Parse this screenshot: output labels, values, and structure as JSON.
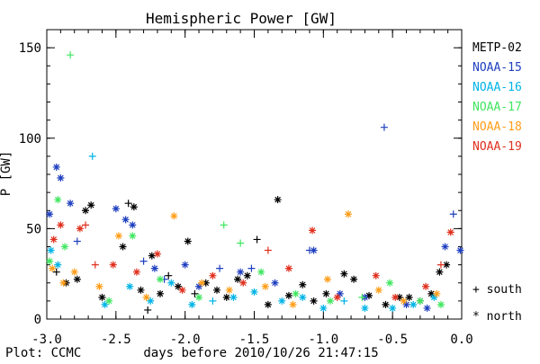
{
  "chart_data": {
    "type": "scatter",
    "title": "Hemispheric Power [GW]",
    "ylabel": "P [GW]",
    "xlabel": "days before 2010/10/26 21:47:15",
    "footer": "Plot: CCMC",
    "xlim": [
      -3.0,
      0.0
    ],
    "ylim": [
      0,
      160
    ],
    "x_ticks": [
      "-3.0",
      "-2.5",
      "-2.0",
      "-1.5",
      "-1.0",
      "-0.5",
      "0.0"
    ],
    "x_tick_values": [
      -3.0,
      -2.5,
      -2.0,
      -1.5,
      -1.0,
      -0.5,
      0.0
    ],
    "y_ticks": [
      "0",
      "50",
      "100",
      "150"
    ],
    "y_tick_values": [
      0,
      50,
      100,
      150
    ],
    "grid": false,
    "legend_placement": "right",
    "marker_legend": [
      {
        "symbol": "+",
        "label": "south"
      },
      {
        "symbol": "*",
        "label": "north"
      }
    ],
    "series": [
      {
        "name": "METP-02",
        "color": "#000000",
        "points": [
          {
            "x": -2.93,
            "y": 26,
            "h": "south"
          },
          {
            "x": -2.86,
            "y": 20,
            "h": "north"
          },
          {
            "x": -2.78,
            "y": 22,
            "h": "north"
          },
          {
            "x": -2.72,
            "y": 60,
            "h": "north"
          },
          {
            "x": -2.68,
            "y": 63,
            "h": "north"
          },
          {
            "x": -2.6,
            "y": 12,
            "h": "north"
          },
          {
            "x": -2.45,
            "y": 40,
            "h": "north"
          },
          {
            "x": -2.41,
            "y": 64,
            "h": "south"
          },
          {
            "x": -2.37,
            "y": 62,
            "h": "north"
          },
          {
            "x": -2.32,
            "y": 16,
            "h": "north"
          },
          {
            "x": -2.27,
            "y": 5,
            "h": "south"
          },
          {
            "x": -2.24,
            "y": 35,
            "h": "north"
          },
          {
            "x": -2.18,
            "y": 14,
            "h": "north"
          },
          {
            "x": -2.12,
            "y": 24,
            "h": "south"
          },
          {
            "x": -2.05,
            "y": 18,
            "h": "north"
          },
          {
            "x": -1.98,
            "y": 43,
            "h": "north"
          },
          {
            "x": -1.93,
            "y": 14,
            "h": "south"
          },
          {
            "x": -1.85,
            "y": 20,
            "h": "north"
          },
          {
            "x": -1.77,
            "y": 16,
            "h": "north"
          },
          {
            "x": -1.7,
            "y": 12,
            "h": "north"
          },
          {
            "x": -1.62,
            "y": 22,
            "h": "north"
          },
          {
            "x": -1.55,
            "y": 24,
            "h": "north"
          },
          {
            "x": -1.48,
            "y": 44,
            "h": "south"
          },
          {
            "x": -1.4,
            "y": 8,
            "h": "north"
          },
          {
            "x": -1.33,
            "y": 66,
            "h": "north"
          },
          {
            "x": -1.25,
            "y": 13,
            "h": "north"
          },
          {
            "x": -1.15,
            "y": 19,
            "h": "north"
          },
          {
            "x": -1.07,
            "y": 10,
            "h": "north"
          },
          {
            "x": -0.98,
            "y": 14,
            "h": "north"
          },
          {
            "x": -0.85,
            "y": 25,
            "h": "north"
          },
          {
            "x": -0.78,
            "y": 22,
            "h": "north"
          },
          {
            "x": -0.67,
            "y": 13,
            "h": "north"
          },
          {
            "x": -0.55,
            "y": 8,
            "h": "north"
          },
          {
            "x": -0.45,
            "y": 12,
            "h": "north"
          },
          {
            "x": -0.38,
            "y": 12,
            "h": "north"
          },
          {
            "x": -0.3,
            "y": 10,
            "h": "north"
          },
          {
            "x": -0.22,
            "y": 14,
            "h": "north"
          },
          {
            "x": -0.16,
            "y": 26,
            "h": "north"
          },
          {
            "x": -0.11,
            "y": 30,
            "h": "north"
          }
        ]
      },
      {
        "name": "NOAA-15",
        "color": "#1f3fbf",
        "points": [
          {
            "x": -2.98,
            "y": 58,
            "h": "north"
          },
          {
            "x": -2.93,
            "y": 84,
            "h": "north"
          },
          {
            "x": -2.9,
            "y": 78,
            "h": "north"
          },
          {
            "x": -2.83,
            "y": 64,
            "h": "north"
          },
          {
            "x": -2.78,
            "y": 43,
            "h": "south"
          },
          {
            "x": -2.5,
            "y": 61,
            "h": "north"
          },
          {
            "x": -2.43,
            "y": 55,
            "h": "north"
          },
          {
            "x": -2.38,
            "y": 52,
            "h": "north"
          },
          {
            "x": -2.3,
            "y": 32,
            "h": "south"
          },
          {
            "x": -2.22,
            "y": 28,
            "h": "north"
          },
          {
            "x": -2.15,
            "y": 22,
            "h": "south"
          },
          {
            "x": -2.0,
            "y": 30,
            "h": "north"
          },
          {
            "x": -1.9,
            "y": 18,
            "h": "north"
          },
          {
            "x": -1.75,
            "y": 28,
            "h": "south"
          },
          {
            "x": -1.6,
            "y": 26,
            "h": "north"
          },
          {
            "x": -1.52,
            "y": 28,
            "h": "south"
          },
          {
            "x": -1.35,
            "y": 20,
            "h": "north"
          },
          {
            "x": -1.1,
            "y": 38,
            "h": "south"
          },
          {
            "x": -1.07,
            "y": 38,
            "h": "north"
          },
          {
            "x": -0.88,
            "y": 14,
            "h": "north"
          },
          {
            "x": -0.7,
            "y": 12,
            "h": "north"
          },
          {
            "x": -0.56,
            "y": 106,
            "h": "south"
          },
          {
            "x": -0.4,
            "y": 8,
            "h": "north"
          },
          {
            "x": -0.25,
            "y": 6,
            "h": "north"
          },
          {
            "x": -0.12,
            "y": 40,
            "h": "north"
          },
          {
            "x": -0.06,
            "y": 58,
            "h": "south"
          },
          {
            "x": -0.01,
            "y": 38,
            "h": "north"
          }
        ]
      },
      {
        "name": "NOAA-16",
        "color": "#00b4e6",
        "points": [
          {
            "x": -2.97,
            "y": 38,
            "h": "north"
          },
          {
            "x": -2.92,
            "y": 30,
            "h": "north"
          },
          {
            "x": -2.67,
            "y": 90,
            "h": "south"
          },
          {
            "x": -2.58,
            "y": 8,
            "h": "north"
          },
          {
            "x": -2.4,
            "y": 18,
            "h": "north"
          },
          {
            "x": -2.25,
            "y": 10,
            "h": "north"
          },
          {
            "x": -2.1,
            "y": 20,
            "h": "north"
          },
          {
            "x": -1.95,
            "y": 8,
            "h": "north"
          },
          {
            "x": -1.8,
            "y": 10,
            "h": "south"
          },
          {
            "x": -1.65,
            "y": 12,
            "h": "north"
          },
          {
            "x": -1.5,
            "y": 15,
            "h": "north"
          },
          {
            "x": -1.3,
            "y": 10,
            "h": "north"
          },
          {
            "x": -1.15,
            "y": 12,
            "h": "north"
          },
          {
            "x": -1.0,
            "y": 6,
            "h": "north"
          },
          {
            "x": -0.85,
            "y": 10,
            "h": "south"
          },
          {
            "x": -0.7,
            "y": 6,
            "h": "north"
          },
          {
            "x": -0.5,
            "y": 6,
            "h": "north"
          },
          {
            "x": -0.35,
            "y": 8,
            "h": "north"
          },
          {
            "x": -0.2,
            "y": 12,
            "h": "north"
          }
        ]
      },
      {
        "name": "NOAA-17",
        "color": "#40e660",
        "points": [
          {
            "x": -2.98,
            "y": 32,
            "h": "north"
          },
          {
            "x": -2.92,
            "y": 66,
            "h": "north"
          },
          {
            "x": -2.87,
            "y": 40,
            "h": "north"
          },
          {
            "x": -2.83,
            "y": 146,
            "h": "south"
          },
          {
            "x": -2.55,
            "y": 10,
            "h": "north"
          },
          {
            "x": -2.38,
            "y": 46,
            "h": "north"
          },
          {
            "x": -2.18,
            "y": 22,
            "h": "north"
          },
          {
            "x": -1.9,
            "y": 12,
            "h": "north"
          },
          {
            "x": -1.72,
            "y": 52,
            "h": "south"
          },
          {
            "x": -1.6,
            "y": 42,
            "h": "south"
          },
          {
            "x": -1.45,
            "y": 26,
            "h": "north"
          },
          {
            "x": -1.2,
            "y": 14,
            "h": "north"
          },
          {
            "x": -0.95,
            "y": 10,
            "h": "north"
          },
          {
            "x": -0.72,
            "y": 12,
            "h": "south"
          },
          {
            "x": -0.52,
            "y": 20,
            "h": "north"
          },
          {
            "x": -0.3,
            "y": 10,
            "h": "north"
          },
          {
            "x": -0.15,
            "y": 8,
            "h": "north"
          }
        ]
      },
      {
        "name": "NOAA-18",
        "color": "#ff9e1a",
        "points": [
          {
            "x": -2.96,
            "y": 28,
            "h": "north"
          },
          {
            "x": -2.88,
            "y": 20,
            "h": "north"
          },
          {
            "x": -2.8,
            "y": 26,
            "h": "north"
          },
          {
            "x": -2.62,
            "y": 18,
            "h": "north"
          },
          {
            "x": -2.48,
            "y": 46,
            "h": "north"
          },
          {
            "x": -2.28,
            "y": 12,
            "h": "north"
          },
          {
            "x": -2.08,
            "y": 57,
            "h": "north"
          },
          {
            "x": -1.88,
            "y": 20,
            "h": "north"
          },
          {
            "x": -1.68,
            "y": 16,
            "h": "north"
          },
          {
            "x": -1.42,
            "y": 18,
            "h": "north"
          },
          {
            "x": -1.22,
            "y": 8,
            "h": "north"
          },
          {
            "x": -0.97,
            "y": 22,
            "h": "north"
          },
          {
            "x": -0.82,
            "y": 58,
            "h": "north"
          },
          {
            "x": -0.6,
            "y": 16,
            "h": "north"
          },
          {
            "x": -0.42,
            "y": 10,
            "h": "north"
          },
          {
            "x": -0.18,
            "y": 14,
            "h": "north"
          }
        ]
      },
      {
        "name": "NOAA-19",
        "color": "#e0301e",
        "points": [
          {
            "x": -2.95,
            "y": 44,
            "h": "north"
          },
          {
            "x": -2.9,
            "y": 52,
            "h": "north"
          },
          {
            "x": -2.76,
            "y": 50,
            "h": "north"
          },
          {
            "x": -2.72,
            "y": 52,
            "h": "south"
          },
          {
            "x": -2.65,
            "y": 30,
            "h": "south"
          },
          {
            "x": -2.52,
            "y": 30,
            "h": "north"
          },
          {
            "x": -2.35,
            "y": 26,
            "h": "north"
          },
          {
            "x": -2.2,
            "y": 36,
            "h": "north"
          },
          {
            "x": -2.02,
            "y": 16,
            "h": "north"
          },
          {
            "x": -1.8,
            "y": 24,
            "h": "north"
          },
          {
            "x": -1.58,
            "y": 20,
            "h": "north"
          },
          {
            "x": -1.4,
            "y": 38,
            "h": "south"
          },
          {
            "x": -1.25,
            "y": 28,
            "h": "north"
          },
          {
            "x": -1.08,
            "y": 49,
            "h": "north"
          },
          {
            "x": -0.9,
            "y": 12,
            "h": "north"
          },
          {
            "x": -0.62,
            "y": 24,
            "h": "north"
          },
          {
            "x": -0.48,
            "y": 12,
            "h": "north"
          },
          {
            "x": -0.26,
            "y": 18,
            "h": "north"
          },
          {
            "x": -0.15,
            "y": 30,
            "h": "south"
          },
          {
            "x": -0.08,
            "y": 48,
            "h": "north"
          }
        ]
      }
    ]
  }
}
